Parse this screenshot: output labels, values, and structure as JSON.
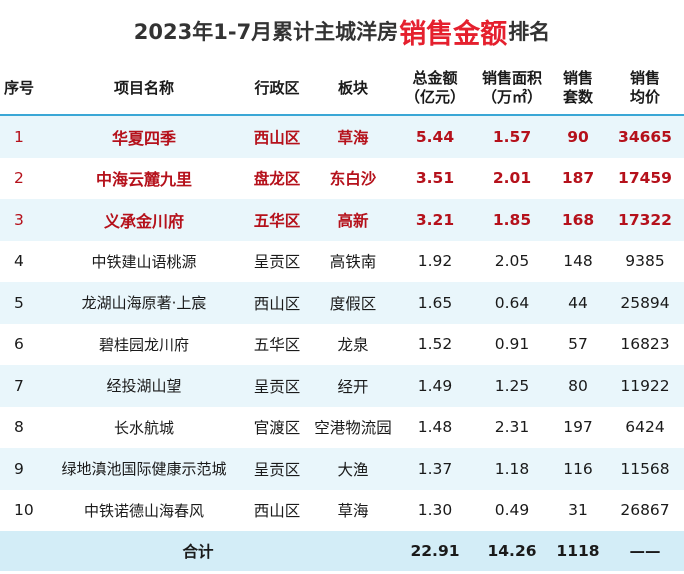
{
  "title": {
    "prefix": "2023年1-7月累计主城洋房",
    "highlight": "销售金额",
    "suffix": "排名"
  },
  "columns": {
    "no": "序号",
    "name": "项目名称",
    "district": "行政区",
    "block": "板块",
    "amount": [
      "总金额",
      "（亿元）"
    ],
    "area": [
      "销售面积",
      "（万㎡）"
    ],
    "units": [
      "销售",
      "套数"
    ],
    "price": [
      "销售",
      "均价"
    ]
  },
  "rows": [
    {
      "no": "1",
      "name": "华夏四季",
      "district": "西山区",
      "block": "草海",
      "amount": "5.44",
      "area": "1.57",
      "units": "90",
      "price": "34665"
    },
    {
      "no": "2",
      "name": "中海云麓九里",
      "district": "盘龙区",
      "block": "东白沙",
      "amount": "3.51",
      "area": "2.01",
      "units": "187",
      "price": "17459"
    },
    {
      "no": "3",
      "name": "义承金川府",
      "district": "五华区",
      "block": "高新",
      "amount": "3.21",
      "area": "1.85",
      "units": "168",
      "price": "17322"
    },
    {
      "no": "4",
      "name": "中铁建山语桃源",
      "district": "呈贡区",
      "block": "高铁南",
      "amount": "1.92",
      "area": "2.05",
      "units": "148",
      "price": "9385"
    },
    {
      "no": "5",
      "name": "龙湖山海原著·上宸",
      "district": "西山区",
      "block": "度假区",
      "amount": "1.65",
      "area": "0.64",
      "units": "44",
      "price": "25894"
    },
    {
      "no": "6",
      "name": "碧桂园龙川府",
      "district": "五华区",
      "block": "龙泉",
      "amount": "1.52",
      "area": "0.91",
      "units": "57",
      "price": "16823"
    },
    {
      "no": "7",
      "name": "经投湖山望",
      "district": "呈贡区",
      "block": "经开",
      "amount": "1.49",
      "area": "1.25",
      "units": "80",
      "price": "11922"
    },
    {
      "no": "8",
      "name": "长水航城",
      "district": "官渡区",
      "block": "空港物流园",
      "amount": "1.48",
      "area": "2.31",
      "units": "197",
      "price": "6424"
    },
    {
      "no": "9",
      "name": "绿地滇池国际健康示范城",
      "district": "呈贡区",
      "block": "大渔",
      "amount": "1.37",
      "area": "1.18",
      "units": "116",
      "price": "11568"
    },
    {
      "no": "10",
      "name": "中铁诺德山海春风",
      "district": "西山区",
      "block": "草海",
      "amount": "1.30",
      "area": "0.49",
      "units": "31",
      "price": "26867"
    }
  ],
  "total": {
    "label": "合计",
    "amount": "22.91",
    "area": "14.26",
    "units": "1118",
    "price": "——"
  },
  "colors": {
    "highlight_red": "#e5202e",
    "top_row_red": "#b5111b",
    "stripe_blue": "#e9f6fb",
    "total_blue": "#d3edf7",
    "header_rule": "#3aa7d6"
  }
}
